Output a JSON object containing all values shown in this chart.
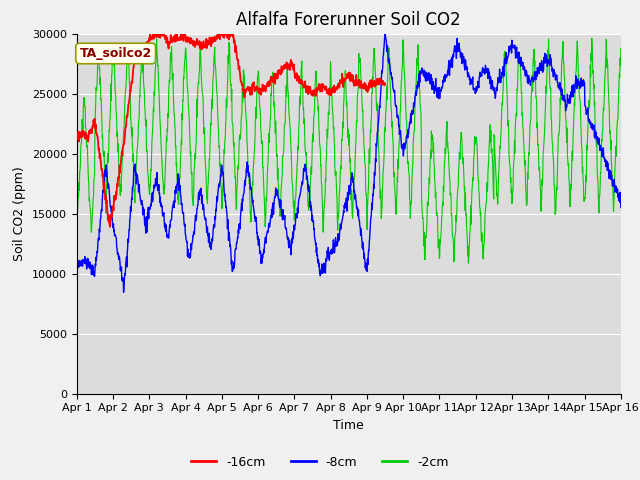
{
  "title": "Alfalfa Forerunner Soil CO2",
  "xlabel": "Time",
  "ylabel": "Soil CO2 (ppm)",
  "ylim": [
    0,
    30000
  ],
  "annotation_text": "TA_soilco2",
  "legend_labels": [
    "-16cm",
    "-8cm",
    "-2cm"
  ],
  "legend_colors": [
    "#ff0000",
    "#0000ff",
    "#00cc00"
  ],
  "bg_color": "#dcdcdc",
  "xtick_labels": [
    "Apr 1",
    "Apr 2",
    "Apr 3",
    "Apr 4",
    "Apr 5",
    "Apr 6",
    "Apr 7",
    "Apr 8",
    "Apr 9",
    "Apr 10",
    "Apr 11",
    "Apr 12",
    "Apr 13",
    "Apr 14",
    "Apr 15",
    "Apr 16"
  ],
  "grid_color": "#ffffff",
  "title_fontsize": 12,
  "axis_fontsize": 9,
  "tick_fontsize": 8,
  "fig_facecolor": "#f0f0f0"
}
